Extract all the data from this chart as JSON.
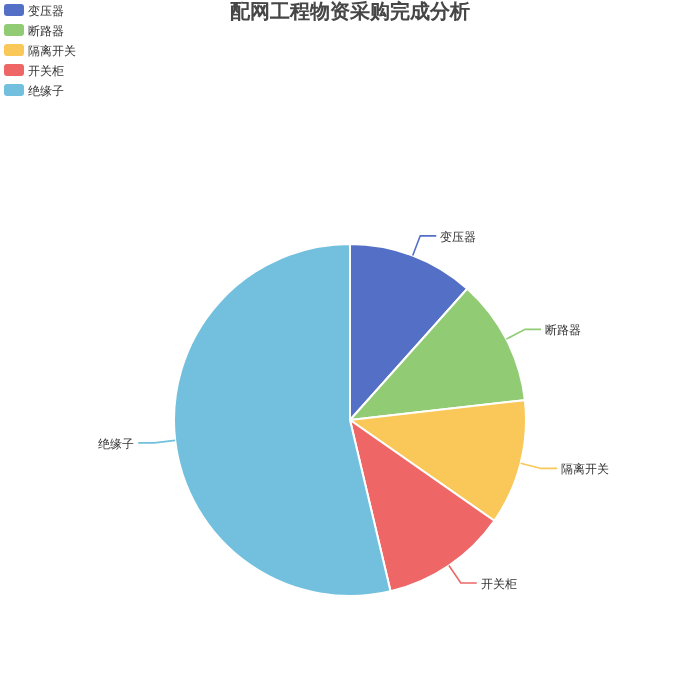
{
  "chart_data": {
    "type": "pie",
    "title": "配网工程物资采购完成分析",
    "categories": [
      "变压器",
      "断路器",
      "隔离开关",
      "开关柜",
      "绝缘子"
    ],
    "values": [
      11.6,
      11.6,
      11.5,
      11.6,
      53.7
    ],
    "colors": [
      "#5470c6",
      "#91cc75",
      "#fac858",
      "#ee6666",
      "#73c0de"
    ],
    "legend": "top left"
  }
}
